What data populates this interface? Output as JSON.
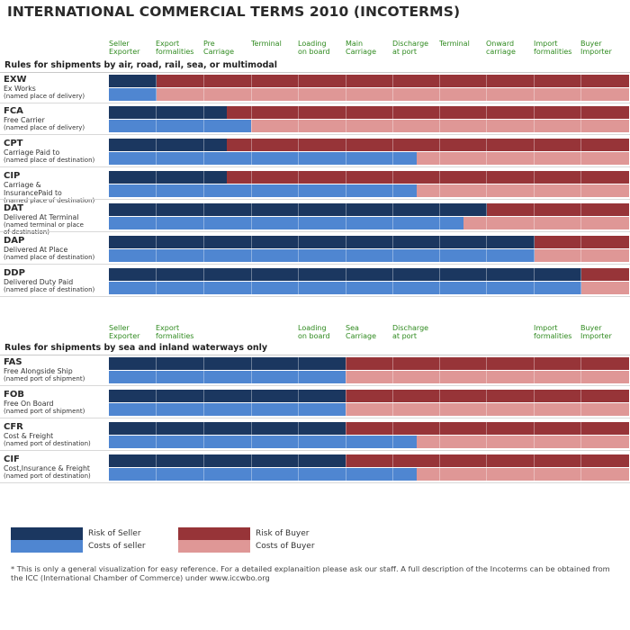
{
  "title": "INTERNATIONAL COMMERCIAL TERMS 2010 (INCOTERMS)",
  "colors": {
    "seller_risk": "#1b3760",
    "seller_cost": "#4f86d1",
    "buyer_risk": "#973438",
    "buyer_cost": "#df9796"
  },
  "section1": {
    "title": "Rules for shipments by air, road, rail, sea, or multimodal",
    "stages": [
      [
        "Seller",
        "Exporter"
      ],
      [
        "Export",
        "formalities"
      ],
      [
        "Pre",
        "Carriage"
      ],
      [
        "Terminal",
        ""
      ],
      [
        "Loading",
        "on board"
      ],
      [
        "Main",
        "Carriage"
      ],
      [
        "Discharge",
        "at port"
      ],
      [
        "Terminal",
        ""
      ],
      [
        "Onward",
        "carriage"
      ],
      [
        "Import",
        "formalities"
      ],
      [
        "Buyer",
        "Importer"
      ]
    ],
    "rows": [
      {
        "code": "EXW",
        "name": "Ex Works",
        "sub": "(named place of delivery)",
        "risk": 1,
        "cost": 1
      },
      {
        "code": "FCA",
        "name": "Free Carrier",
        "sub": "(named place of delivery)",
        "risk": 2.5,
        "cost": 3
      },
      {
        "code": "CPT",
        "name": "Carriage Paid to",
        "sub": "(named place of destination)",
        "risk": 2.5,
        "cost": 6.5
      },
      {
        "code": "CIP",
        "name": "Carriage &",
        "name2": "InsurancePaid to",
        "sub": "(named place of destination)",
        "risk": 2.5,
        "cost": 6.5
      },
      {
        "code": "DAT",
        "name": "Delivered At Terminal",
        "sub": "(named terminal or place",
        "sub2": "of destination)",
        "risk": 8,
        "cost": 7.5
      },
      {
        "code": "DAP",
        "name": "Delivered At Place",
        "sub": "(named place of destination)",
        "risk": 9,
        "cost": 9
      },
      {
        "code": "DDP",
        "name": "Delivered Duty Paid",
        "sub": "(named place of destination)",
        "risk": 10,
        "cost": 10
      }
    ]
  },
  "section2": {
    "title": "Rules for shipments by sea and inland waterways only",
    "stages": [
      [
        "Seller",
        "Exporter"
      ],
      [
        "Export",
        "formalities"
      ],
      [
        "",
        ""
      ],
      [
        "",
        ""
      ],
      [
        "Loading",
        "on board"
      ],
      [
        "Sea",
        "Carriage"
      ],
      [
        "Discharge",
        "at port"
      ],
      [
        "",
        ""
      ],
      [
        "",
        ""
      ],
      [
        "Import",
        "formalities"
      ],
      [
        "Buyer",
        "Importer"
      ]
    ],
    "rows": [
      {
        "code": "FAS",
        "name": "Free Alongside Ship",
        "sub": "(named port of shipment)",
        "risk": 5,
        "cost": 5
      },
      {
        "code": "FOB",
        "name": "Free On Board",
        "sub": "(named port of shipment)",
        "risk": 5,
        "cost": 5
      },
      {
        "code": "CFR",
        "name": "Cost & Freight",
        "sub": "(named port of destination)",
        "risk": 5,
        "cost": 6.5
      },
      {
        "code": "CIF",
        "name": "Cost,Insurance & Freight",
        "sub": "(named port of destination)",
        "risk": 5,
        "cost": 6.5
      }
    ]
  },
  "legend": {
    "seller_risk": "Risk of  Seller",
    "seller_cost": "Costs of seller",
    "buyer_risk": "Risk of  Buyer",
    "buyer_cost": "Costs of Buyer"
  },
  "footnote": "* This is only a general visualization for easy reference. For a detailed explanaition please ask our staff. A full description of the Incoterms can be obtained from the ICC (International Chamber of Commerce) under www.iccwbo.org"
}
